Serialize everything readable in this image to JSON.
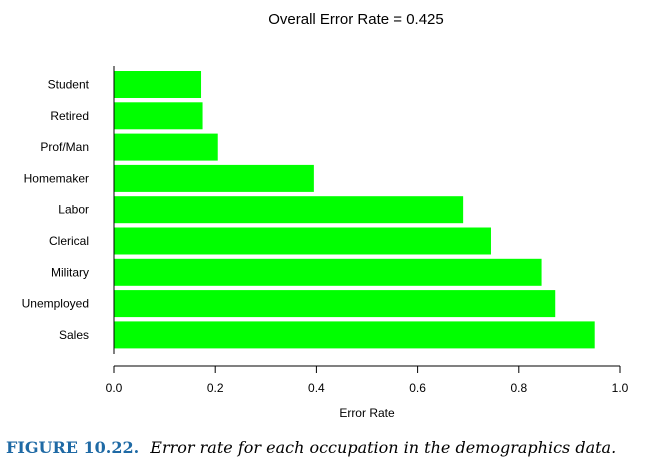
{
  "chart_data": {
    "type": "bar",
    "orientation": "horizontal",
    "title": "Overall Error Rate = 0.425",
    "xlabel": "Error Rate",
    "ylabel": "",
    "categories": [
      "Student",
      "Retired",
      "Prof/Man",
      "Homemaker",
      "Labor",
      "Clerical",
      "Military",
      "Unemployed",
      "Sales"
    ],
    "values": [
      0.172,
      0.175,
      0.205,
      0.395,
      0.69,
      0.745,
      0.845,
      0.872,
      0.95
    ],
    "xlim": [
      0,
      1.0
    ],
    "xticks": [
      "0.0",
      "0.2",
      "0.4",
      "0.6",
      "0.8",
      "1.0"
    ],
    "grid": false,
    "bar_color": "#00ff00"
  },
  "caption": {
    "number": "FIGURE 10.22.",
    "text": "Error rate for each occupation in the demographics data."
  }
}
